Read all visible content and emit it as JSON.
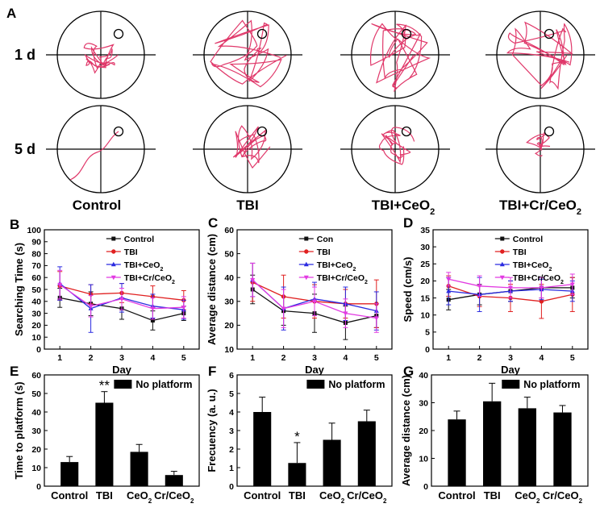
{
  "maze": {
    "panel_label": "A",
    "rows": [
      "1 d",
      "5 d"
    ],
    "groups": [
      {
        "name": "Control",
        "sub": ""
      },
      {
        "name": "TBI",
        "sub": ""
      },
      {
        "name": "TBI+CeO",
        "sub": "2"
      },
      {
        "name": "TBI+Cr/CeO",
        "sub": "2"
      }
    ]
  },
  "colors": {
    "path": "#e0386a",
    "Control": "#111111",
    "TBI": "#e02020",
    "TBI+CeO2": "#2a2ae0",
    "TBI+Cr/CeO2": "#e23ae2",
    "bar": "#000000"
  },
  "chart_data": [
    {
      "id": "B",
      "type": "line",
      "title": "",
      "xlabel": "Day",
      "ylabel": "Searching Time (s)",
      "categories": [
        "1",
        "2",
        "3",
        "4",
        "5"
      ],
      "ylim": [
        0,
        100
      ],
      "yticks": [
        "0",
        "10",
        "20",
        "30",
        "40",
        "50",
        "60",
        "70",
        "80",
        "90",
        "100"
      ],
      "legend": [
        "Control",
        "TBI",
        "TBI+CeO2",
        "TBI+Cr/CeO2"
      ],
      "series": [
        {
          "name": "Control",
          "values": [
            43,
            38,
            34,
            24,
            30
          ],
          "err": [
            8,
            10,
            9,
            8,
            6
          ]
        },
        {
          "name": "TBI",
          "values": [
            53,
            46,
            47,
            44,
            41
          ],
          "err": [
            12,
            8,
            8,
            9,
            8
          ]
        },
        {
          "name": "TBI+CeO2",
          "values": [
            55,
            34,
            43,
            36,
            33
          ],
          "err": [
            14,
            20,
            12,
            10,
            8
          ]
        },
        {
          "name": "TBI+Cr/CeO2",
          "values": [
            54,
            36,
            42,
            34,
            35
          ],
          "err": [
            12,
            9,
            9,
            9,
            9
          ]
        }
      ]
    },
    {
      "id": "C",
      "type": "line",
      "title": "",
      "xlabel": "Day",
      "ylabel": "Average distance (cm)",
      "categories": [
        "1",
        "2",
        "3",
        "4",
        "5"
      ],
      "ylim": [
        10,
        60
      ],
      "yticks": [
        "10",
        "20",
        "30",
        "40",
        "50",
        "60"
      ],
      "legend": [
        "Con",
        "TBI",
        "TBI+CeO2",
        "TBI+Cr/CeO2"
      ],
      "series": [
        {
          "name": "Con",
          "values": [
            35,
            26,
            25,
            21,
            24
          ],
          "err": [
            6,
            6,
            8,
            7,
            5
          ]
        },
        {
          "name": "TBI",
          "values": [
            38,
            32,
            30,
            29,
            29
          ],
          "err": [
            8,
            9,
            7,
            6,
            10
          ]
        },
        {
          "name": "TBI+CeO2",
          "values": [
            39,
            27,
            31,
            29,
            26
          ],
          "err": [
            7,
            9,
            7,
            7,
            8
          ]
        },
        {
          "name": "TBI+Cr/CeO2",
          "values": [
            39,
            27,
            30,
            25,
            23
          ],
          "err": [
            7,
            8,
            6,
            6,
            6
          ]
        }
      ]
    },
    {
      "id": "D",
      "type": "line",
      "title": "",
      "xlabel": "Day",
      "ylabel": "Speed  (cm/s)",
      "categories": [
        "1",
        "2",
        "3",
        "4",
        "5"
      ],
      "ylim": [
        0,
        35
      ],
      "yticks": [
        "0",
        "5",
        "10",
        "15",
        "20",
        "25",
        "30",
        "35"
      ],
      "legend": [
        "Control",
        "TBI",
        "TBI+CeO2",
        "TBI+Cr/CeO2"
      ],
      "series": [
        {
          "name": "Control",
          "values": [
            14.5,
            16,
            17,
            18,
            18
          ],
          "err": [
            3,
            3,
            3,
            3,
            3
          ]
        },
        {
          "name": "TBI",
          "values": [
            18.5,
            15.5,
            15,
            14,
            16
          ],
          "err": [
            3,
            3,
            4,
            5,
            5
          ]
        },
        {
          "name": "TBI+CeO2",
          "values": [
            17,
            16,
            17,
            17.5,
            17
          ],
          "err": [
            4,
            5,
            3,
            3,
            3
          ]
        },
        {
          "name": "TBI+Cr/CeO2",
          "values": [
            20.5,
            18.5,
            18,
            18,
            19
          ],
          "err": [
            2,
            3,
            3,
            3,
            3
          ]
        }
      ]
    },
    {
      "id": "E",
      "type": "bar",
      "title": "",
      "xlabel": "",
      "ylabel": "Time to platform (s)",
      "categories": [
        {
          "t": "Control",
          "s": ""
        },
        {
          "t": "TBI",
          "s": ""
        },
        {
          "t": "CeO",
          "s": "2"
        },
        {
          "t": "Cr/CeO",
          "s": "2"
        }
      ],
      "ylim": [
        0,
        60
      ],
      "yticks": [
        "0",
        "10",
        "20",
        "30",
        "40",
        "50",
        "60"
      ],
      "legend": [
        "No platform"
      ],
      "values": [
        13,
        45,
        18.5,
        6
      ],
      "err": [
        3,
        6,
        4,
        2
      ],
      "annotations": [
        {
          "category": 1,
          "text": "**"
        }
      ]
    },
    {
      "id": "F",
      "type": "bar",
      "title": "",
      "xlabel": "",
      "ylabel": "Frecuency (a. u.)",
      "categories": [
        {
          "t": "Control",
          "s": ""
        },
        {
          "t": "TBI",
          "s": ""
        },
        {
          "t": "CeO",
          "s": "2"
        },
        {
          "t": "Cr/CeO",
          "s": "2"
        }
      ],
      "ylim": [
        0,
        6
      ],
      "yticks": [
        "0",
        "1",
        "2",
        "3",
        "4",
        "5",
        "6"
      ],
      "legend": [
        "No platform"
      ],
      "values": [
        4.0,
        1.25,
        2.5,
        3.5
      ],
      "err": [
        0.8,
        1.1,
        0.9,
        0.6
      ],
      "annotations": [
        {
          "category": 1,
          "text": "*"
        }
      ]
    },
    {
      "id": "G",
      "type": "bar",
      "title": "",
      "xlabel": "",
      "ylabel": "Average distance (cm)",
      "categories": [
        {
          "t": "Control",
          "s": ""
        },
        {
          "t": "TBI",
          "s": ""
        },
        {
          "t": "CeO",
          "s": "2"
        },
        {
          "t": "Cr/CeO",
          "s": "2"
        }
      ],
      "ylim": [
        0,
        40
      ],
      "yticks": [
        "0",
        "10",
        "20",
        "30",
        "40"
      ],
      "legend": [
        "No platform"
      ],
      "values": [
        24,
        30.5,
        28,
        26.5
      ],
      "err": [
        3,
        6.5,
        4,
        2.5
      ],
      "annotations": []
    }
  ]
}
